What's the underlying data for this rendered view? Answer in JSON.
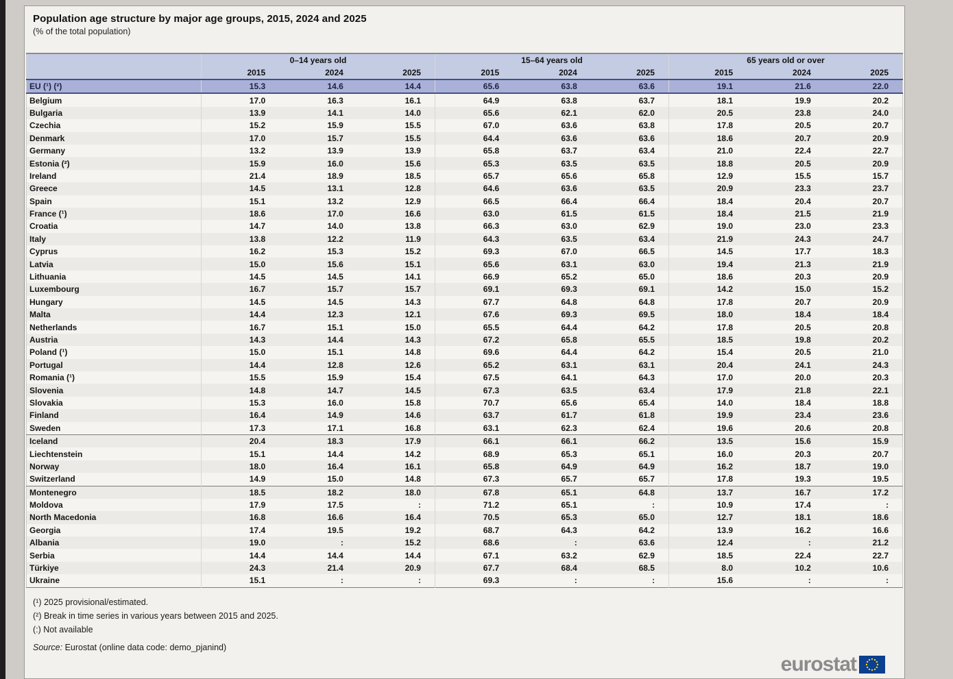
{
  "title": "Population age structure by major age groups, 2015, 2024 and 2025",
  "subtitle": "(% of the total population)",
  "table": {
    "col_groups": [
      "0–14 years old",
      "15–64 years old",
      "65 years old or over"
    ],
    "years": [
      "2015",
      "2024",
      "2025"
    ],
    "not_available_symbol": ":",
    "eu_row": {
      "label": "EU (¹) (²)",
      "values": [
        "15.3",
        "14.6",
        "14.4",
        "65.6",
        "63.8",
        "63.6",
        "19.1",
        "21.6",
        "22.0"
      ]
    },
    "sections": [
      {
        "rows": [
          {
            "label": "Belgium",
            "values": [
              "17.0",
              "16.3",
              "16.1",
              "64.9",
              "63.8",
              "63.7",
              "18.1",
              "19.9",
              "20.2"
            ]
          },
          {
            "label": "Bulgaria",
            "values": [
              "13.9",
              "14.1",
              "14.0",
              "65.6",
              "62.1",
              "62.0",
              "20.5",
              "23.8",
              "24.0"
            ]
          },
          {
            "label": "Czechia",
            "values": [
              "15.2",
              "15.9",
              "15.5",
              "67.0",
              "63.6",
              "63.8",
              "17.8",
              "20.5",
              "20.7"
            ]
          },
          {
            "label": "Denmark",
            "values": [
              "17.0",
              "15.7",
              "15.5",
              "64.4",
              "63.6",
              "63.6",
              "18.6",
              "20.7",
              "20.9"
            ]
          },
          {
            "label": "Germany",
            "values": [
              "13.2",
              "13.9",
              "13.9",
              "65.8",
              "63.7",
              "63.4",
              "21.0",
              "22.4",
              "22.7"
            ]
          },
          {
            "label": "Estonia (²)",
            "values": [
              "15.9",
              "16.0",
              "15.6",
              "65.3",
              "63.5",
              "63.5",
              "18.8",
              "20.5",
              "20.9"
            ]
          },
          {
            "label": "Ireland",
            "values": [
              "21.4",
              "18.9",
              "18.5",
              "65.7",
              "65.6",
              "65.8",
              "12.9",
              "15.5",
              "15.7"
            ]
          },
          {
            "label": "Greece",
            "values": [
              "14.5",
              "13.1",
              "12.8",
              "64.6",
              "63.6",
              "63.5",
              "20.9",
              "23.3",
              "23.7"
            ]
          },
          {
            "label": "Spain",
            "values": [
              "15.1",
              "13.2",
              "12.9",
              "66.5",
              "66.4",
              "66.4",
              "18.4",
              "20.4",
              "20.7"
            ]
          },
          {
            "label": "France (¹)",
            "values": [
              "18.6",
              "17.0",
              "16.6",
              "63.0",
              "61.5",
              "61.5",
              "18.4",
              "21.5",
              "21.9"
            ]
          },
          {
            "label": "Croatia",
            "values": [
              "14.7",
              "14.0",
              "13.8",
              "66.3",
              "63.0",
              "62.9",
              "19.0",
              "23.0",
              "23.3"
            ]
          },
          {
            "label": "Italy",
            "values": [
              "13.8",
              "12.2",
              "11.9",
              "64.3",
              "63.5",
              "63.4",
              "21.9",
              "24.3",
              "24.7"
            ]
          },
          {
            "label": "Cyprus",
            "values": [
              "16.2",
              "15.3",
              "15.2",
              "69.3",
              "67.0",
              "66.5",
              "14.5",
              "17.7",
              "18.3"
            ]
          },
          {
            "label": "Latvia",
            "values": [
              "15.0",
              "15.6",
              "15.1",
              "65.6",
              "63.1",
              "63.0",
              "19.4",
              "21.3",
              "21.9"
            ]
          },
          {
            "label": "Lithuania",
            "values": [
              "14.5",
              "14.5",
              "14.1",
              "66.9",
              "65.2",
              "65.0",
              "18.6",
              "20.3",
              "20.9"
            ]
          },
          {
            "label": "Luxembourg",
            "values": [
              "16.7",
              "15.7",
              "15.7",
              "69.1",
              "69.3",
              "69.1",
              "14.2",
              "15.0",
              "15.2"
            ]
          },
          {
            "label": "Hungary",
            "values": [
              "14.5",
              "14.5",
              "14.3",
              "67.7",
              "64.8",
              "64.8",
              "17.8",
              "20.7",
              "20.9"
            ]
          },
          {
            "label": "Malta",
            "values": [
              "14.4",
              "12.3",
              "12.1",
              "67.6",
              "69.3",
              "69.5",
              "18.0",
              "18.4",
              "18.4"
            ]
          },
          {
            "label": "Netherlands",
            "values": [
              "16.7",
              "15.1",
              "15.0",
              "65.5",
              "64.4",
              "64.2",
              "17.8",
              "20.5",
              "20.8"
            ]
          },
          {
            "label": "Austria",
            "values": [
              "14.3",
              "14.4",
              "14.3",
              "67.2",
              "65.8",
              "65.5",
              "18.5",
              "19.8",
              "20.2"
            ]
          },
          {
            "label": "Poland (¹)",
            "values": [
              "15.0",
              "15.1",
              "14.8",
              "69.6",
              "64.4",
              "64.2",
              "15.4",
              "20.5",
              "21.0"
            ]
          },
          {
            "label": "Portugal",
            "values": [
              "14.4",
              "12.8",
              "12.6",
              "65.2",
              "63.1",
              "63.1",
              "20.4",
              "24.1",
              "24.3"
            ]
          },
          {
            "label": "Romania (¹)",
            "values": [
              "15.5",
              "15.9",
              "15.4",
              "67.5",
              "64.1",
              "64.3",
              "17.0",
              "20.0",
              "20.3"
            ]
          },
          {
            "label": "Slovenia",
            "values": [
              "14.8",
              "14.7",
              "14.5",
              "67.3",
              "63.5",
              "63.4",
              "17.9",
              "21.8",
              "22.1"
            ]
          },
          {
            "label": "Slovakia",
            "values": [
              "15.3",
              "16.0",
              "15.8",
              "70.7",
              "65.6",
              "65.4",
              "14.0",
              "18.4",
              "18.8"
            ]
          },
          {
            "label": "Finland",
            "values": [
              "16.4",
              "14.9",
              "14.6",
              "63.7",
              "61.7",
              "61.8",
              "19.9",
              "23.4",
              "23.6"
            ]
          },
          {
            "label": "Sweden",
            "values": [
              "17.3",
              "17.1",
              "16.8",
              "63.1",
              "62.3",
              "62.4",
              "19.6",
              "20.6",
              "20.8"
            ]
          }
        ]
      },
      {
        "rows": [
          {
            "label": "Iceland",
            "values": [
              "20.4",
              "18.3",
              "17.9",
              "66.1",
              "66.1",
              "66.2",
              "13.5",
              "15.6",
              "15.9"
            ]
          },
          {
            "label": "Liechtenstein",
            "values": [
              "15.1",
              "14.4",
              "14.2",
              "68.9",
              "65.3",
              "65.1",
              "16.0",
              "20.3",
              "20.7"
            ]
          },
          {
            "label": "Norway",
            "values": [
              "18.0",
              "16.4",
              "16.1",
              "65.8",
              "64.9",
              "64.9",
              "16.2",
              "18.7",
              "19.0"
            ]
          },
          {
            "label": "Switzerland",
            "values": [
              "14.9",
              "15.0",
              "14.8",
              "67.3",
              "65.7",
              "65.7",
              "17.8",
              "19.3",
              "19.5"
            ]
          }
        ]
      },
      {
        "rows": [
          {
            "label": "Montenegro",
            "values": [
              "18.5",
              "18.2",
              "18.0",
              "67.8",
              "65.1",
              "64.8",
              "13.7",
              "16.7",
              "17.2"
            ]
          },
          {
            "label": "Moldova",
            "values": [
              "17.9",
              "17.5",
              ":",
              "71.2",
              "65.1",
              ":",
              "10.9",
              "17.4",
              ":"
            ]
          },
          {
            "label": "North Macedonia",
            "values": [
              "16.8",
              "16.6",
              "16.4",
              "70.5",
              "65.3",
              "65.0",
              "12.7",
              "18.1",
              "18.6"
            ]
          },
          {
            "label": "Georgia",
            "values": [
              "17.4",
              "19.5",
              "19.2",
              "68.7",
              "64.3",
              "64.2",
              "13.9",
              "16.2",
              "16.6"
            ]
          },
          {
            "label": "Albania",
            "values": [
              "19.0",
              ":",
              "15.2",
              "68.6",
              ":",
              "63.6",
              "12.4",
              ":",
              "21.2"
            ]
          },
          {
            "label": "Serbia",
            "values": [
              "14.4",
              "14.4",
              "14.4",
              "67.1",
              "63.2",
              "62.9",
              "18.5",
              "22.4",
              "22.7"
            ]
          },
          {
            "label": "Türkiye",
            "values": [
              "24.3",
              "21.4",
              "20.9",
              "67.7",
              "68.4",
              "68.5",
              "8.0",
              "10.2",
              "10.6"
            ]
          },
          {
            "label": "Ukraine",
            "values": [
              "15.1",
              ":",
              ":",
              "69.3",
              ":",
              ":",
              "15.6",
              ":",
              ":"
            ]
          }
        ]
      }
    ]
  },
  "footnotes": [
    "(¹) 2025 provisional/estimated.",
    "(²) Break in time series in various years between 2015 and 2025.",
    "(:) Not available"
  ],
  "source": {
    "prefix": "Source:",
    "text": "Eurostat (online data code: demo_pjanind)"
  },
  "logo": {
    "text": "eurostat",
    "flag_blue": "#0b3f8f",
    "star_yellow": "#ffd617"
  },
  "colors": {
    "header_band": "#c4cce4",
    "eu_row": "#a9b1d8",
    "panel": "#f2f1ee",
    "page_bg": "#cfccc7"
  }
}
